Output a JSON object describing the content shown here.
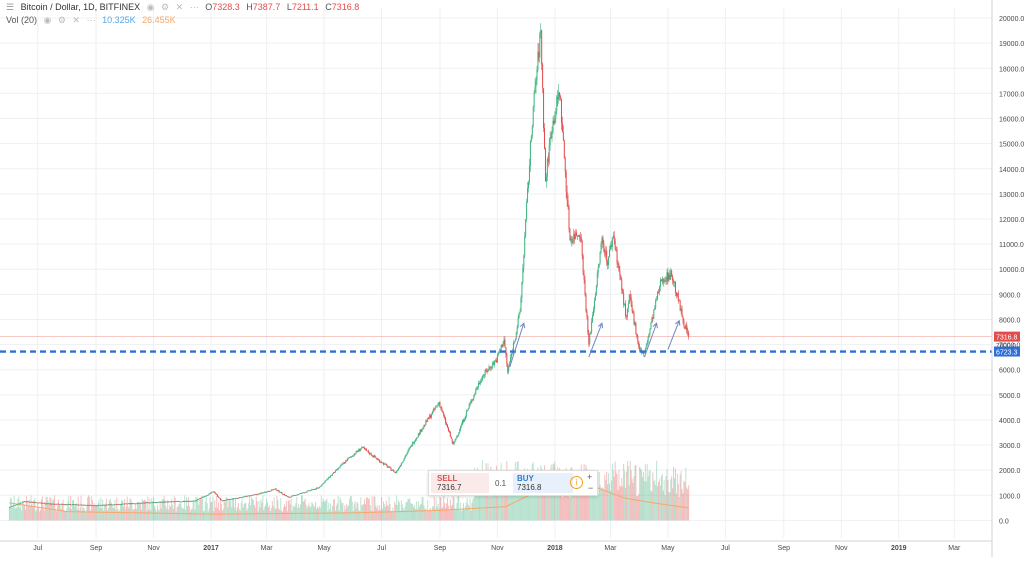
{
  "header": {
    "symbol_title": "Bitcoin / Dollar, 1D, BITFINEX",
    "ohlc": [
      {
        "label": "O",
        "value": "7328.3"
      },
      {
        "label": "H",
        "value": "7387.7"
      },
      {
        "label": "L",
        "value": "7211.1"
      },
      {
        "label": "C",
        "value": "7316.8"
      }
    ],
    "volume_label": "Vol (20)",
    "volume_value_1": "10.325K",
    "volume_value_2": "26.455K"
  },
  "trade_panel": {
    "sell_label": "SELL",
    "sell_price": "7316.7",
    "quantity": "0.1",
    "buy_label": "BUY",
    "buy_price": "7316.8",
    "info_glyph": "i",
    "plus_glyph": "+",
    "minus_glyph": "−"
  },
  "price_tags": {
    "last": "7316.8",
    "line": "6723.3",
    "partial_label": "7000.0"
  },
  "colors": {
    "up": "#3eb37f",
    "down": "#e34c4c",
    "line": "#2f6fd8",
    "arrow": "#6f86c9",
    "volume_ma": "#f5a86a",
    "grid": "#eef0f3"
  },
  "chart_data": {
    "type": "candlestick",
    "x_labels": [
      "Jul",
      "Sep",
      "Nov",
      "2017",
      "Mar",
      "May",
      "Jul",
      "Sep",
      "Nov",
      "2018",
      "Mar",
      "May",
      "Jul",
      "Sep",
      "Nov",
      "2019",
      "Mar"
    ],
    "y_ticks": [
      "0.0",
      "1000.0",
      "2000.0",
      "3000.0",
      "4000.0",
      "5000.0",
      "6000.0",
      "7000.0",
      "8000.0",
      "9000.0",
      "10000.0",
      "11000.0",
      "12000.0",
      "13000.0",
      "14000.0",
      "15000.0",
      "16000.0",
      "17000.0",
      "18000.0",
      "19000.0",
      "20000.0"
    ],
    "ylim": [
      -700,
      20400
    ],
    "horizontal_line": 6723.3,
    "last_price": 7316.8,
    "price_path": [
      [
        "2016-06-01",
        530
      ],
      [
        "2016-06-17",
        760
      ],
      [
        "2016-07-15",
        660
      ],
      [
        "2016-09-01",
        600
      ],
      [
        "2016-11-01",
        720
      ],
      [
        "2016-12-15",
        780
      ],
      [
        "2017-01-04",
        1150
      ],
      [
        "2017-01-12",
        780
      ],
      [
        "2017-02-20",
        1050
      ],
      [
        "2017-03-10",
        1250
      ],
      [
        "2017-03-24",
        920
      ],
      [
        "2017-04-25",
        1300
      ],
      [
        "2017-05-25",
        2400
      ],
      [
        "2017-06-10",
        2900
      ],
      [
        "2017-07-16",
        1900
      ],
      [
        "2017-08-05",
        3200
      ],
      [
        "2017-08-31",
        4700
      ],
      [
        "2017-09-15",
        3000
      ],
      [
        "2017-09-28",
        4200
      ],
      [
        "2017-10-15",
        5700
      ],
      [
        "2017-10-31",
        6400
      ],
      [
        "2017-11-08",
        7200
      ],
      [
        "2017-11-12",
        5900
      ],
      [
        "2017-11-25",
        8300
      ],
      [
        "2017-12-08",
        16000
      ],
      [
        "2017-12-17",
        19500
      ],
      [
        "2017-12-22",
        13500
      ],
      [
        "2017-12-28",
        15500
      ],
      [
        "2018-01-06",
        17100
      ],
      [
        "2018-01-17",
        11200
      ],
      [
        "2018-01-28",
        11500
      ],
      [
        "2018-02-06",
        7000
      ],
      [
        "2018-02-20",
        11200
      ],
      [
        "2018-02-26",
        10300
      ],
      [
        "2018-03-04",
        11400
      ],
      [
        "2018-03-18",
        8000
      ],
      [
        "2018-03-21",
        8900
      ],
      [
        "2018-04-01",
        6800
      ],
      [
        "2018-04-06",
        6600
      ],
      [
        "2018-04-16",
        8300
      ],
      [
        "2018-04-24",
        9600
      ],
      [
        "2018-05-05",
        9800
      ],
      [
        "2018-05-17",
        8000
      ],
      [
        "2018-05-23",
        7300
      ]
    ],
    "volume_ma_path": [
      [
        "2016-06-01",
        700
      ],
      [
        "2016-08-01",
        350
      ],
      [
        "2017-01-01",
        250
      ],
      [
        "2017-06-01",
        300
      ],
      [
        "2017-09-01",
        400
      ],
      [
        "2017-11-10",
        550
      ],
      [
        "2017-12-10",
        1100
      ],
      [
        "2018-01-15",
        1400
      ],
      [
        "2018-02-15",
        1300
      ],
      [
        "2018-03-15",
        900
      ],
      [
        "2018-04-15",
        700
      ],
      [
        "2018-05-23",
        500
      ]
    ],
    "annotation_arrows": 4
  }
}
